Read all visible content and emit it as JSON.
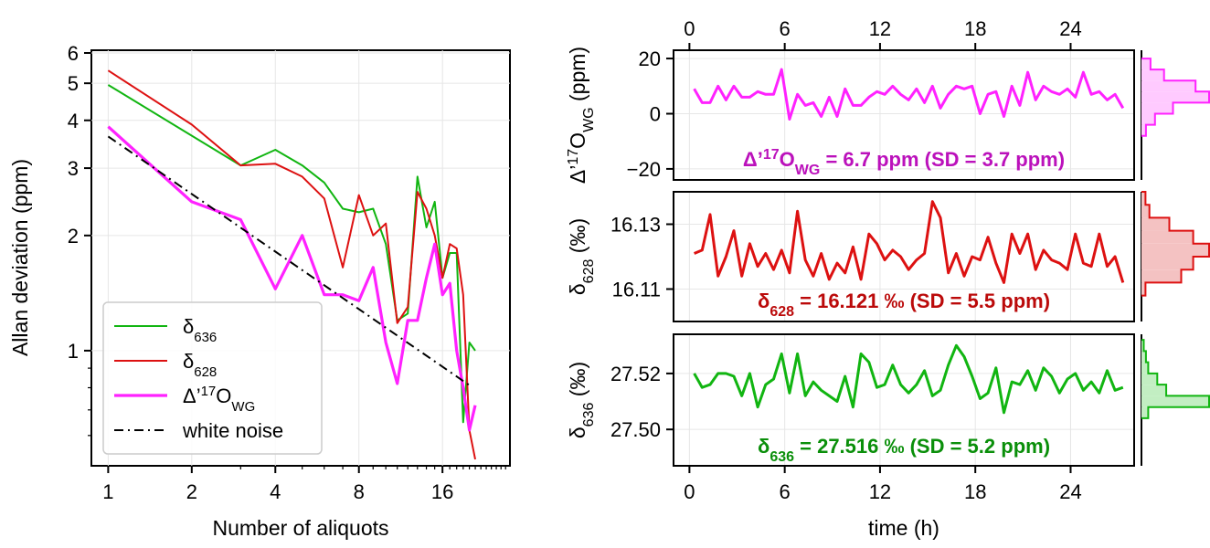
{
  "chart_data": [
    {
      "type": "line",
      "scale": "log-log",
      "xlabel": "Number of aliquots",
      "ylabel": "Allan deviation (ppm)",
      "x_ticks": [
        1,
        2,
        4,
        8,
        16
      ],
      "x_tick_labels": [
        "1",
        "2",
        "4",
        "8",
        "16"
      ],
      "y_ticks": [
        1,
        2,
        3,
        4,
        5,
        6
      ],
      "y_tick_labels": [
        "1",
        "2",
        "3",
        "4",
        "5",
        "6"
      ],
      "xlim": [
        0.87,
        28
      ],
      "ylim": [
        0.5,
        6.1
      ],
      "grid": true,
      "legend_position": "lower-left",
      "series": [
        {
          "name": "δ636",
          "legend_main": "δ",
          "legend_sub": "636",
          "color": "#11b511",
          "line_width": 2,
          "x": [
            1,
            3,
            4,
            5,
            6,
            7,
            8,
            9,
            10,
            11,
            12,
            13,
            14,
            15,
            16,
            17,
            18,
            19,
            20,
            21
          ],
          "y": [
            4.95,
            3.05,
            3.35,
            3.05,
            2.75,
            2.35,
            2.3,
            2.35,
            1.9,
            1.2,
            1.25,
            2.85,
            2.1,
            2.45,
            1.55,
            1.8,
            1.8,
            0.65,
            1.05,
            1.0
          ]
        },
        {
          "name": "δ628",
          "legend_main": "δ",
          "legend_sub": "628",
          "color": "#dd1111",
          "line_width": 2,
          "x": [
            1,
            2,
            3,
            4,
            5,
            6,
            7,
            8,
            9,
            10,
            11,
            12,
            13,
            14,
            15,
            16,
            17,
            18,
            19,
            20,
            21
          ],
          "y": [
            5.4,
            3.9,
            3.05,
            3.08,
            2.85,
            2.5,
            1.65,
            2.55,
            2.0,
            2.15,
            1.18,
            1.3,
            2.6,
            2.35,
            2.0,
            1.55,
            1.9,
            1.85,
            1.4,
            0.62,
            0.52
          ]
        },
        {
          "name": "Δ’17OWG",
          "legend_main": "Δ’",
          "legend_sup": "17",
          "legend_main2": "O",
          "legend_sub": "WG",
          "color": "#ff22ff",
          "line_width": 3.2,
          "x": [
            1,
            2,
            3,
            4,
            5,
            6,
            7,
            8,
            9,
            10,
            11,
            12,
            13,
            14,
            15,
            16,
            17,
            18,
            19,
            20,
            21
          ],
          "y": [
            3.85,
            2.45,
            2.2,
            1.45,
            2.0,
            1.4,
            1.4,
            1.35,
            1.65,
            1.05,
            0.82,
            1.2,
            1.2,
            1.55,
            1.9,
            1.4,
            1.5,
            1.0,
            0.8,
            0.62,
            0.72
          ]
        },
        {
          "name": "white noise",
          "legend_main": "white noise",
          "color": "#000000",
          "line_width": 2,
          "dash": "10 5 2 5",
          "x": [
            1,
            20
          ],
          "y": [
            3.63,
            0.812
          ]
        }
      ]
    },
    {
      "type": "line",
      "ylabel_main": "Δ’",
      "ylabel_sup": "17",
      "ylabel_main2": "O",
      "ylabel_sub": "WG",
      "ylabel_unit": " (ppm)",
      "x_ticks": [
        0,
        6,
        12,
        18,
        24
      ],
      "x_tick_labels": [
        "0",
        "6",
        "12",
        "18",
        "24"
      ],
      "xlim": [
        -1,
        28
      ],
      "y_ticks": [
        20,
        0,
        -20
      ],
      "y_tick_labels": [
        "20",
        "0",
        "−20"
      ],
      "ylim": [
        -24,
        23
      ],
      "color": "#ff22ff",
      "annotation": {
        "main": "Δ’",
        "sup": "17",
        "main2": "O",
        "sub": "WG",
        "rest": " = 6.7 ppm (SD = 3.7 ppm)",
        "color": "#bb11bb"
      },
      "histogram": {
        "bin_edges": [
          -8,
          -4,
          0,
          4,
          8,
          12,
          16,
          20
        ],
        "counts": [
          1,
          3,
          7,
          15,
          12,
          5,
          2
        ],
        "fill": "#ffcaff",
        "edge": "#ff22ff"
      },
      "x": [
        0.3,
        0.8,
        1.3,
        1.8,
        2.3,
        2.8,
        3.3,
        3.8,
        4.3,
        4.8,
        5.3,
        5.8,
        6.3,
        6.8,
        7.3,
        7.8,
        8.3,
        8.8,
        9.3,
        9.8,
        10.3,
        10.8,
        11.3,
        11.8,
        12.3,
        12.8,
        13.3,
        13.8,
        14.3,
        14.8,
        15.3,
        15.8,
        16.3,
        16.8,
        17.3,
        17.8,
        18.3,
        18.8,
        19.3,
        19.8,
        20.3,
        20.8,
        21.3,
        21.8,
        22.3,
        22.8,
        23.3,
        23.8,
        24.3,
        24.8,
        25.3,
        25.8,
        26.3,
        26.8,
        27.3
      ],
      "y": [
        9,
        4,
        4,
        10,
        5,
        10,
        6,
        6,
        8,
        7,
        7,
        16,
        -2,
        7,
        3,
        4,
        -1,
        6,
        -1,
        9,
        3,
        3,
        6,
        8,
        7,
        10,
        7,
        5,
        9,
        4,
        10,
        2,
        7,
        10,
        9,
        10,
        0,
        7,
        8,
        -1,
        10,
        3,
        15,
        5,
        10,
        8,
        7,
        9,
        6,
        15,
        7,
        8,
        5,
        7,
        2
      ]
    },
    {
      "type": "line",
      "ylabel_main": "δ",
      "ylabel_sub": "628",
      "ylabel_unit": " (‰)",
      "x_ticks": [
        0,
        6,
        12,
        18,
        24
      ],
      "xlim": [
        -1,
        28
      ],
      "y_ticks": [
        16.13,
        16.11
      ],
      "y_tick_labels": [
        "16.13",
        "16.11"
      ],
      "ylim": [
        16.1,
        16.14
      ],
      "color": "#dd1111",
      "annotation": {
        "main": "δ",
        "sub": "628",
        "rest": " = 16.121 ‰ (SD = 5.5 ppm)",
        "color": "#bb0a0a"
      },
      "histogram": {
        "bin_edges": [
          16.108,
          16.112,
          16.116,
          16.12,
          16.124,
          16.128,
          16.132,
          16.136,
          16.14
        ],
        "counts": [
          1,
          10,
          13,
          17,
          13,
          7,
          2,
          1
        ],
        "fill": "#f4c2c2",
        "edge": "#dd1111"
      },
      "x": [
        0.3,
        0.8,
        1.3,
        1.8,
        2.3,
        2.8,
        3.3,
        3.8,
        4.3,
        4.8,
        5.3,
        5.8,
        6.3,
        6.8,
        7.3,
        7.8,
        8.3,
        8.8,
        9.3,
        9.8,
        10.3,
        10.8,
        11.3,
        11.8,
        12.3,
        12.8,
        13.3,
        13.8,
        14.3,
        14.8,
        15.3,
        15.8,
        16.3,
        16.8,
        17.3,
        17.8,
        18.3,
        18.8,
        19.3,
        19.8,
        20.3,
        20.8,
        21.3,
        21.8,
        22.3,
        22.8,
        23.3,
        23.8,
        24.3,
        24.8,
        25.3,
        25.8,
        26.3,
        26.8,
        27.3
      ],
      "y": [
        16.121,
        16.122,
        16.133,
        16.114,
        16.12,
        16.128,
        16.114,
        16.124,
        16.117,
        16.121,
        16.116,
        16.122,
        16.115,
        16.134,
        16.119,
        16.114,
        16.121,
        16.113,
        16.118,
        16.115,
        16.123,
        16.113,
        16.127,
        16.124,
        16.119,
        16.122,
        16.12,
        16.116,
        16.119,
        16.121,
        16.137,
        16.132,
        16.115,
        16.121,
        16.114,
        16.12,
        16.119,
        16.126,
        16.118,
        16.112,
        16.127,
        16.121,
        16.127,
        16.116,
        16.122,
        16.119,
        16.118,
        16.116,
        16.127,
        16.118,
        16.117,
        16.127,
        16.117,
        16.12,
        16.112
      ]
    },
    {
      "type": "line",
      "xlabel": "time (h)",
      "ylabel_main": "δ",
      "ylabel_sub": "636",
      "ylabel_unit": " (‰)",
      "x_ticks": [
        0,
        6,
        12,
        18,
        24
      ],
      "x_tick_labels": [
        "0",
        "6",
        "12",
        "18",
        "24"
      ],
      "xlim": [
        -1,
        28
      ],
      "y_ticks": [
        27.52,
        27.5
      ],
      "y_tick_labels": [
        "27.52",
        "27.50"
      ],
      "ylim": [
        27.487,
        27.534
      ],
      "color": "#11b511",
      "annotation": {
        "main": "δ",
        "sub": "636",
        "rest": " = 27.516 ‰ (SD = 5.2 ppm)",
        "color": "#0a8f0a"
      },
      "histogram": {
        "bin_edges": [
          27.504,
          27.508,
          27.512,
          27.516,
          27.52,
          27.524,
          27.528,
          27.532
        ],
        "counts": [
          3,
          30,
          11,
          7,
          3,
          2,
          1
        ],
        "fill": "#c2eec2",
        "edge": "#11b511"
      },
      "x": [
        0.3,
        0.8,
        1.3,
        1.8,
        2.3,
        2.8,
        3.3,
        3.8,
        4.3,
        4.8,
        5.3,
        5.8,
        6.3,
        6.8,
        7.3,
        7.8,
        8.3,
        8.8,
        9.3,
        9.8,
        10.3,
        10.8,
        11.3,
        11.8,
        12.3,
        12.8,
        13.3,
        13.8,
        14.3,
        14.8,
        15.3,
        15.8,
        16.3,
        16.8,
        17.3,
        17.8,
        18.3,
        18.8,
        19.3,
        19.8,
        20.3,
        20.8,
        21.3,
        21.8,
        22.3,
        22.8,
        23.3,
        23.8,
        24.3,
        24.8,
        25.3,
        25.8,
        26.3,
        26.8,
        27.3
      ],
      "y": [
        27.52,
        27.515,
        27.516,
        27.52,
        27.52,
        27.519,
        27.512,
        27.52,
        27.508,
        27.516,
        27.518,
        27.527,
        27.513,
        27.527,
        27.512,
        27.517,
        27.514,
        27.512,
        27.51,
        27.519,
        27.508,
        27.527,
        27.524,
        27.515,
        27.516,
        27.523,
        27.516,
        27.513,
        27.516,
        27.521,
        27.512,
        27.514,
        27.523,
        27.53,
        27.526,
        27.519,
        27.511,
        27.513,
        27.522,
        27.506,
        27.517,
        27.516,
        27.521,
        27.514,
        27.522,
        27.519,
        27.513,
        27.518,
        27.52,
        27.514,
        27.517,
        27.513,
        27.521,
        27.514,
        27.515
      ]
    }
  ]
}
